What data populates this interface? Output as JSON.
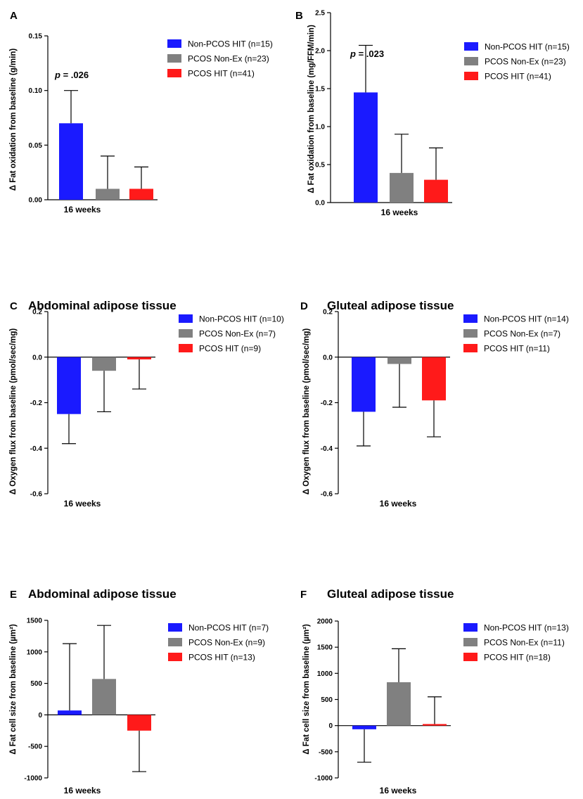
{
  "chart_data": [
    {
      "type": "bar",
      "panel": "A",
      "title": "",
      "ylabel": "Δ Fat oxidation from baseline (g/min)",
      "xlabel": "16 weeks",
      "ylim": [
        0,
        0.15
      ],
      "yticks": [
        0,
        0.05,
        0.1,
        0.15
      ],
      "ytick_labels": [
        "0.00",
        "0.05",
        "0.10",
        "0.15"
      ],
      "annotation": {
        "prefix": "p",
        "text": " = .026"
      },
      "series": [
        {
          "name": "Non-PCOS HIT (n=15)",
          "color": "#1a1aff",
          "value": 0.07,
          "error": 0.03
        },
        {
          "name": "PCOS Non-Ex (n=23)",
          "color": "#808080",
          "value": 0.01,
          "error": 0.03
        },
        {
          "name": "PCOS HIT (n=41)",
          "color": "#ff1a1a",
          "value": 0.01,
          "error": 0.02
        }
      ]
    },
    {
      "type": "bar",
      "panel": "B",
      "title": "",
      "ylabel": "Δ Fat oxidation from baseline (mg/FFM/min)",
      "xlabel": "16 weeks",
      "ylim": [
        0,
        2.5
      ],
      "yticks": [
        0,
        0.5,
        1.0,
        1.5,
        2.0,
        2.5
      ],
      "ytick_labels": [
        "0.0",
        "0.5",
        "1.0",
        "1.5",
        "2.0",
        "2.5"
      ],
      "annotation": {
        "prefix": "p",
        "text": " = .023"
      },
      "series": [
        {
          "name": "Non-PCOS HIT (n=15)",
          "color": "#1a1aff",
          "value": 1.45,
          "error": 0.62
        },
        {
          "name": "PCOS Non-Ex (n=23)",
          "color": "#808080",
          "value": 0.39,
          "error": 0.51
        },
        {
          "name": "PCOS HIT (n=41)",
          "color": "#ff1a1a",
          "value": 0.3,
          "error": 0.42
        }
      ]
    },
    {
      "type": "bar",
      "panel": "C",
      "title": "Abdominal adipose tissue",
      "ylabel": "Δ Oxygen flux from baseline (pmol/sec/mg)",
      "xlabel": "16 weeks",
      "ylim": [
        -0.6,
        0.2
      ],
      "yticks": [
        -0.6,
        -0.4,
        -0.2,
        0.0,
        0.2
      ],
      "ytick_labels": [
        "-0.6",
        "-0.4",
        "-0.2",
        "0.0",
        "0.2"
      ],
      "series": [
        {
          "name": "Non-PCOS HIT (n=10)",
          "color": "#1a1aff",
          "value": -0.25,
          "error": 0.13
        },
        {
          "name": "PCOS Non-Ex (n=7)",
          "color": "#808080",
          "value": -0.06,
          "error": 0.18
        },
        {
          "name": "PCOS HIT (n=9)",
          "color": "#ff1a1a",
          "value": -0.01,
          "error": 0.13
        }
      ]
    },
    {
      "type": "bar",
      "panel": "D",
      "title": "Gluteal adipose tissue",
      "ylabel": "Δ Oxygen flux from baseline (pmol/sec/mg)",
      "xlabel": "16 weeks",
      "ylim": [
        -0.6,
        0.2
      ],
      "yticks": [
        -0.6,
        -0.4,
        -0.2,
        0.0,
        0.2
      ],
      "ytick_labels": [
        "-0.6",
        "-0.4",
        "-0.2",
        "0.0",
        "0.2"
      ],
      "series": [
        {
          "name": "Non-PCOS HIT (n=14)",
          "color": "#1a1aff",
          "value": -0.24,
          "error": 0.15
        },
        {
          "name": "PCOS Non-Ex (n=7)",
          "color": "#808080",
          "value": -0.03,
          "error": 0.19
        },
        {
          "name": "PCOS HIT (n=11)",
          "color": "#ff1a1a",
          "value": -0.19,
          "error": 0.16
        }
      ]
    },
    {
      "type": "bar",
      "panel": "E",
      "title": "Abdominal adipose tissue",
      "ylabel": "Δ Fat cell size from baseline (µm²)",
      "xlabel": "16 weeks",
      "ylim": [
        -1000,
        1500
      ],
      "yticks": [
        -1000,
        -500,
        0,
        500,
        1000,
        1500
      ],
      "ytick_labels": [
        "-1000",
        "-500",
        "0",
        "500",
        "1000",
        "1500"
      ],
      "series": [
        {
          "name": "Non-PCOS HIT (n=7)",
          "color": "#1a1aff",
          "value": 70,
          "error": 1060
        },
        {
          "name": "PCOS Non-Ex (n=9)",
          "color": "#808080",
          "value": 570,
          "error": 850
        },
        {
          "name": "PCOS HIT (n=13)",
          "color": "#ff1a1a",
          "value": -250,
          "error": 650
        }
      ]
    },
    {
      "type": "bar",
      "panel": "F",
      "title": "Gluteal adipose tissue",
      "ylabel": "Δ Fat cell size from baseline (µm²)",
      "xlabel": "16 weeks",
      "ylim": [
        -1000,
        2000
      ],
      "yticks": [
        -1000,
        -500,
        0,
        500,
        1000,
        1500,
        2000
      ],
      "ytick_labels": [
        "-1000",
        "-500",
        "0",
        "500",
        "1000",
        "1500",
        "2000"
      ],
      "series": [
        {
          "name": "Non-PCOS HIT (n=13)",
          "color": "#1a1aff",
          "value": -70,
          "error": 630
        },
        {
          "name": "PCOS Non-Ex (n=11)",
          "color": "#808080",
          "value": 830,
          "error": 640
        },
        {
          "name": "PCOS HIT (n=18)",
          "color": "#ff1a1a",
          "value": 30,
          "error": 520
        }
      ]
    }
  ]
}
